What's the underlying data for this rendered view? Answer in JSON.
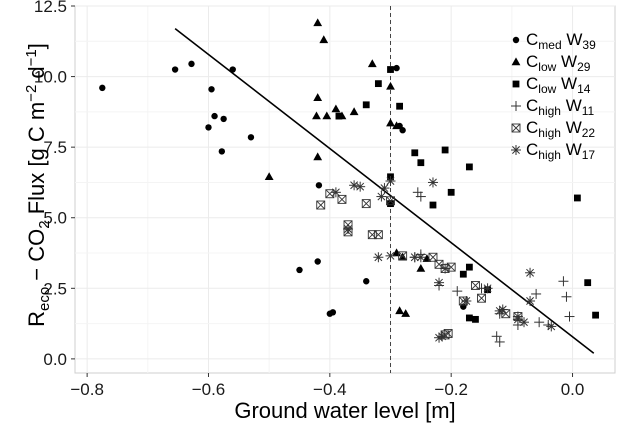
{
  "chart_data": {
    "type": "scatter",
    "xlabel": "Ground water level [m]",
    "ylabel_parts": {
      "r": "R",
      "r_sub": "eco",
      "dash": " − CO",
      "co2_sub": "2",
      "flux": " Flux [g C m",
      "exp1": "−2",
      "d": " d",
      "exp2": "−1",
      "close": "]"
    },
    "xlim": [
      -0.82,
      0.07
    ],
    "ylim": [
      -0.5,
      12.5
    ],
    "xticks": [
      -0.8,
      -0.6,
      -0.4,
      -0.2,
      0.0
    ],
    "xtick_labels": [
      "−0.8",
      "−0.6",
      "−0.4",
      "−0.2",
      "0.0"
    ],
    "yticks": [
      0,
      2.5,
      5,
      7.5,
      10,
      12.5
    ],
    "ytick_labels": [
      "0.0",
      "2.5",
      "5.0",
      "7.5",
      "10.0",
      "12.5"
    ],
    "grid": true,
    "legend_placement": "top-right",
    "vline": {
      "x": -0.3,
      "style": "dashed"
    },
    "regression_line": {
      "x": [
        -0.655,
        0.035
      ],
      "y": [
        11.7,
        0.2
      ]
    },
    "series": [
      {
        "name_main": "C",
        "name_sub1": "med",
        "name_mid": " W",
        "name_sub2": "39",
        "marker": "circle",
        "points": [
          [
            -0.775,
            9.6
          ],
          [
            -0.655,
            10.25
          ],
          [
            -0.628,
            10.45
          ],
          [
            -0.595,
            9.55
          ],
          [
            -0.59,
            8.6
          ],
          [
            -0.6,
            8.2
          ],
          [
            -0.575,
            8.5
          ],
          [
            -0.578,
            7.35
          ],
          [
            -0.56,
            10.25
          ],
          [
            -0.53,
            7.85
          ],
          [
            -0.45,
            3.15
          ],
          [
            -0.42,
            3.45
          ],
          [
            -0.418,
            6.15
          ],
          [
            -0.4,
            1.6
          ],
          [
            -0.395,
            1.65
          ],
          [
            -0.34,
            2.75
          ],
          [
            -0.29,
            10.3
          ],
          [
            -0.285,
            8.25
          ],
          [
            -0.28,
            8.1
          ],
          [
            -0.18,
            1.85
          ]
        ]
      },
      {
        "name_main": "C",
        "name_sub1": "low",
        "name_mid": " W",
        "name_sub2": "29",
        "marker": "triangle",
        "points": [
          [
            -0.42,
            11.9
          ],
          [
            -0.41,
            11.3
          ],
          [
            -0.42,
            9.25
          ],
          [
            -0.422,
            8.6
          ],
          [
            -0.405,
            8.6
          ],
          [
            -0.39,
            8.85
          ],
          [
            -0.38,
            8.6
          ],
          [
            -0.36,
            8.75
          ],
          [
            -0.33,
            10.45
          ],
          [
            -0.3,
            9.65
          ],
          [
            -0.3,
            8.35
          ],
          [
            -0.29,
            8.25
          ],
          [
            -0.42,
            7.15
          ],
          [
            -0.5,
            6.45
          ],
          [
            -0.29,
            3.75
          ],
          [
            -0.28,
            3.6
          ],
          [
            -0.25,
            3.2
          ],
          [
            -0.285,
            1.7
          ],
          [
            -0.275,
            1.6
          ],
          [
            -0.24,
            3.55
          ]
        ]
      },
      {
        "name_main": "C",
        "name_sub1": "low",
        "name_mid": " W",
        "name_sub2": "14",
        "marker": "square",
        "points": [
          [
            -0.32,
            9.75
          ],
          [
            -0.3,
            10.25
          ],
          [
            -0.285,
            8.95
          ],
          [
            -0.34,
            9.0
          ],
          [
            -0.385,
            8.6
          ],
          [
            -0.26,
            7.3
          ],
          [
            -0.25,
            6.95
          ],
          [
            -0.21,
            7.4
          ],
          [
            -0.17,
            6.8
          ],
          [
            -0.3,
            6.45
          ],
          [
            -0.3,
            5.5
          ],
          [
            -0.2,
            5.9
          ],
          [
            -0.23,
            5.45
          ],
          [
            -0.18,
            3.0
          ],
          [
            -0.17,
            3.25
          ],
          [
            -0.14,
            2.45
          ],
          [
            -0.17,
            1.45
          ],
          [
            -0.16,
            1.4
          ],
          [
            0.008,
            5.7
          ],
          [
            0.025,
            2.7
          ],
          [
            0.038,
            1.55
          ]
        ]
      },
      {
        "name_main": "C",
        "name_sub1": "high",
        "name_mid": " W",
        "name_sub2": "11",
        "marker": "plus",
        "points": [
          [
            -0.255,
            5.9
          ],
          [
            -0.25,
            5.75
          ],
          [
            -0.26,
            3.6
          ],
          [
            -0.25,
            3.7
          ],
          [
            -0.21,
            3.2
          ],
          [
            -0.22,
            2.6
          ],
          [
            -0.19,
            2.4
          ],
          [
            -0.15,
            2.5
          ],
          [
            -0.12,
            1.6
          ],
          [
            -0.125,
            0.8
          ],
          [
            -0.12,
            0.6
          ],
          [
            -0.09,
            1.2
          ],
          [
            -0.09,
            1.5
          ],
          [
            -0.06,
            2.3
          ],
          [
            -0.055,
            1.3
          ],
          [
            -0.04,
            1.2
          ],
          [
            -0.015,
            2.75
          ],
          [
            -0.01,
            2.2
          ],
          [
            -0.005,
            1.5
          ]
        ]
      },
      {
        "name_main": "C",
        "name_sub1": "high",
        "name_mid": " W",
        "name_sub2": "22",
        "marker": "boxx",
        "points": [
          [
            -0.415,
            5.45
          ],
          [
            -0.4,
            5.85
          ],
          [
            -0.38,
            5.65
          ],
          [
            -0.37,
            4.75
          ],
          [
            -0.37,
            4.5
          ],
          [
            -0.34,
            5.5
          ],
          [
            -0.33,
            4.4
          ],
          [
            -0.32,
            4.4
          ],
          [
            -0.3,
            5.6
          ],
          [
            -0.28,
            3.65
          ],
          [
            -0.23,
            3.6
          ],
          [
            -0.22,
            3.35
          ],
          [
            -0.21,
            3.2
          ],
          [
            -0.2,
            3.25
          ],
          [
            -0.18,
            2.05
          ],
          [
            -0.16,
            2.6
          ],
          [
            -0.15,
            2.15
          ],
          [
            -0.11,
            1.6
          ],
          [
            -0.09,
            1.5
          ],
          [
            -0.21,
            0.85
          ],
          [
            -0.205,
            0.9
          ]
        ]
      },
      {
        "name_main": "C",
        "name_sub1": "high",
        "name_mid": " W",
        "name_sub2": "17",
        "marker": "star",
        "points": [
          [
            -0.39,
            5.9
          ],
          [
            -0.35,
            6.1
          ],
          [
            -0.36,
            6.15
          ],
          [
            -0.31,
            6.05
          ],
          [
            -0.315,
            5.75
          ],
          [
            -0.3,
            6.3
          ],
          [
            -0.23,
            6.25
          ],
          [
            -0.37,
            4.6
          ],
          [
            -0.32,
            3.6
          ],
          [
            -0.3,
            3.65
          ],
          [
            -0.26,
            3.6
          ],
          [
            -0.25,
            3.6
          ],
          [
            -0.22,
            2.7
          ],
          [
            -0.175,
            2.05
          ],
          [
            -0.14,
            2.5
          ],
          [
            -0.12,
            1.7
          ],
          [
            -0.115,
            1.75
          ],
          [
            -0.09,
            1.4
          ],
          [
            -0.08,
            1.3
          ],
          [
            -0.07,
            3.05
          ],
          [
            -0.07,
            2.05
          ],
          [
            -0.035,
            1.15
          ],
          [
            -0.22,
            0.75
          ],
          [
            -0.215,
            0.8
          ]
        ]
      }
    ]
  }
}
